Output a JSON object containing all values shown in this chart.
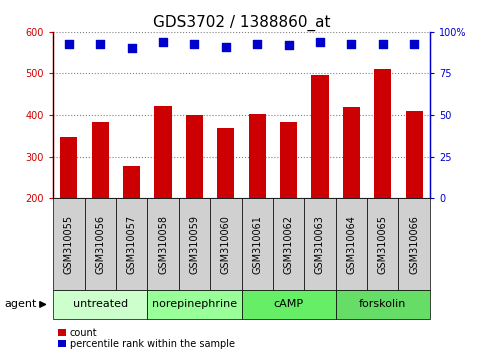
{
  "title": "GDS3702 / 1388860_at",
  "samples": [
    "GSM310055",
    "GSM310056",
    "GSM310057",
    "GSM310058",
    "GSM310059",
    "GSM310060",
    "GSM310061",
    "GSM310062",
    "GSM310063",
    "GSM310064",
    "GSM310065",
    "GSM310066"
  ],
  "counts": [
    348,
    383,
    278,
    422,
    400,
    370,
    403,
    383,
    497,
    420,
    510,
    410
  ],
  "percentiles": [
    93,
    93,
    90,
    94,
    93,
    91,
    93,
    92,
    94,
    93,
    93,
    93
  ],
  "bar_color": "#cc0000",
  "dot_color": "#0000cc",
  "ylim_left": [
    200,
    600
  ],
  "ylim_right": [
    0,
    100
  ],
  "yticks_left": [
    200,
    300,
    400,
    500,
    600
  ],
  "yticks_right": [
    0,
    25,
    50,
    75,
    100
  ],
  "yticklabels_right": [
    "0",
    "25",
    "50",
    "75",
    "100%"
  ],
  "groups": [
    {
      "label": "untreated",
      "start": 0,
      "end": 3,
      "color": "#ccffcc"
    },
    {
      "label": "norepinephrine",
      "start": 3,
      "end": 6,
      "color": "#99ff99"
    },
    {
      "label": "cAMP",
      "start": 6,
      "end": 9,
      "color": "#66ee66"
    },
    {
      "label": "forskolin",
      "start": 9,
      "end": 12,
      "color": "#66dd66"
    }
  ],
  "agent_label": "agent",
  "legend_count_label": "count",
  "legend_pct_label": "percentile rank within the sample",
  "title_fontsize": 11,
  "tick_fontsize": 7,
  "label_fontsize": 8,
  "bar_width": 0.55,
  "dot_size": 28,
  "background_color": "#ffffff",
  "sample_box_color": "#d0d0d0",
  "plot_bg_color": "#ffffff"
}
